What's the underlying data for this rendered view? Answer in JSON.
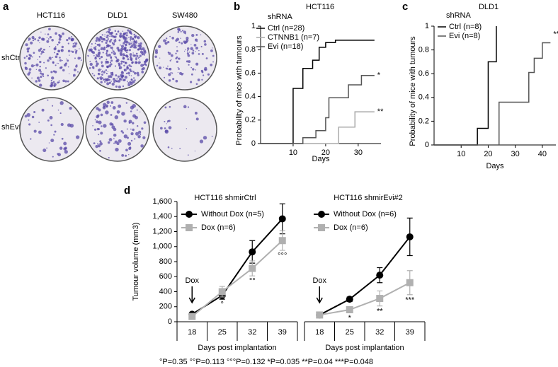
{
  "panel_a": {
    "panel_label": "a",
    "columns": [
      "HCT116",
      "DLD1",
      "SW480"
    ],
    "rows": [
      "shCtrl",
      "shEvi"
    ]
  },
  "chart_data": [
    {
      "type": "step",
      "panel_label": "b",
      "title": "HCT116",
      "legend_title": "shRNA",
      "x_label": "Days",
      "y_label": "Probability of mice with tumours",
      "xlim": [
        0,
        37
      ],
      "xticks": [
        10,
        20,
        30
      ],
      "ylim": [
        0,
        1
      ],
      "yticks": [
        0,
        0.2,
        0.4,
        0.6,
        0.8,
        1
      ],
      "series": [
        {
          "name": "Ctrl (n=28)",
          "color": "#000000",
          "x": [
            0,
            10,
            13,
            16,
            18,
            20,
            23,
            35
          ],
          "values": [
            0,
            0.47,
            0.64,
            0.71,
            0.82,
            0.86,
            0.88,
            0.88
          ]
        },
        {
          "name": "CTNNB1 (n=7)",
          "color": "#aaaaaa",
          "x": [
            0,
            24,
            29,
            35
          ],
          "values": [
            0,
            0.14,
            0.27,
            0.27
          ],
          "annotation": "**"
        },
        {
          "name": "Evi (n=18)",
          "color": "#555555",
          "x": [
            0,
            13,
            17,
            20,
            21,
            27,
            31,
            35
          ],
          "values": [
            0,
            0.05,
            0.11,
            0.22,
            0.39,
            0.5,
            0.58,
            0.58
          ],
          "annotation": "*"
        }
      ]
    },
    {
      "type": "step",
      "panel_label": "c",
      "title": "DLD1",
      "legend_title": "shRNA",
      "x_label": "Days",
      "y_label": "Probability of mice with tumours",
      "xlim": [
        0,
        45
      ],
      "xticks": [
        10,
        20,
        30,
        40
      ],
      "ylim": [
        0,
        1
      ],
      "yticks": [
        0,
        0.2,
        0.4,
        0.6,
        0.8,
        1
      ],
      "series": [
        {
          "name": "Ctrl (n=8)",
          "color": "#000000",
          "x": [
            0,
            16,
            20,
            23
          ],
          "values": [
            0,
            0.14,
            0.7,
            1
          ]
        },
        {
          "name": "Evi (n=8)",
          "color": "#555555",
          "x": [
            0,
            24,
            35,
            37,
            40,
            43
          ],
          "values": [
            0,
            0.36,
            0.61,
            0.73,
            0.86,
            0.86
          ],
          "annotation": "***"
        }
      ]
    },
    {
      "type": "line",
      "panel_label": "d",
      "title": "HCT116 shmirCtrl",
      "x_label": "Days post implantation",
      "y_label": "Tumour volume (mm3)",
      "arrow_label": "Dox",
      "categories": [
        "18",
        "25",
        "32",
        "39"
      ],
      "ylim": [
        0,
        1600
      ],
      "yticks": [
        0,
        200,
        400,
        600,
        800,
        {
          "value": 1000,
          "label": "1,000"
        },
        {
          "value": 1200,
          "label": "1,200"
        },
        {
          "value": 1400,
          "label": "1,400"
        },
        {
          "value": 1600,
          "label": "1,600"
        }
      ],
      "annotations": [
        null,
        "°",
        "°°",
        "°°°"
      ],
      "series": [
        {
          "name": "Without Dox (n=5)",
          "color": "#000000",
          "marker": "circle",
          "values": [
            100,
            350,
            930,
            1370
          ],
          "errors": [
            20,
            50,
            150,
            200
          ]
        },
        {
          "name": "Dox (n=6)",
          "color": "#b0b0b0",
          "marker": "square",
          "values": [
            70,
            400,
            710,
            1080
          ],
          "errors": [
            15,
            70,
            100,
            130
          ]
        }
      ]
    },
    {
      "type": "line",
      "title": "HCT116 shmirEvi#2",
      "x_label": "Days post implantation",
      "arrow_label": "Dox",
      "categories": [
        "18",
        "25",
        "32",
        "39"
      ],
      "ylim": [
        0,
        1600
      ],
      "annotations": [
        null,
        "*",
        "**",
        "***"
      ],
      "series": [
        {
          "name": "Without Dox (n=6)",
          "color": "#000000",
          "marker": "circle",
          "values": [
            90,
            300,
            620,
            1130
          ],
          "errors": [
            15,
            30,
            100,
            250
          ]
        },
        {
          "name": "Dox (n=6)",
          "color": "#b0b0b0",
          "marker": "square",
          "values": [
            90,
            160,
            310,
            520
          ],
          "errors": [
            15,
            40,
            100,
            160
          ]
        }
      ]
    }
  ],
  "footnote": "°P=0.35   °°P=0.113   °°°P=0.132   *P=0.035   **P=0.04   ***P=0.048"
}
